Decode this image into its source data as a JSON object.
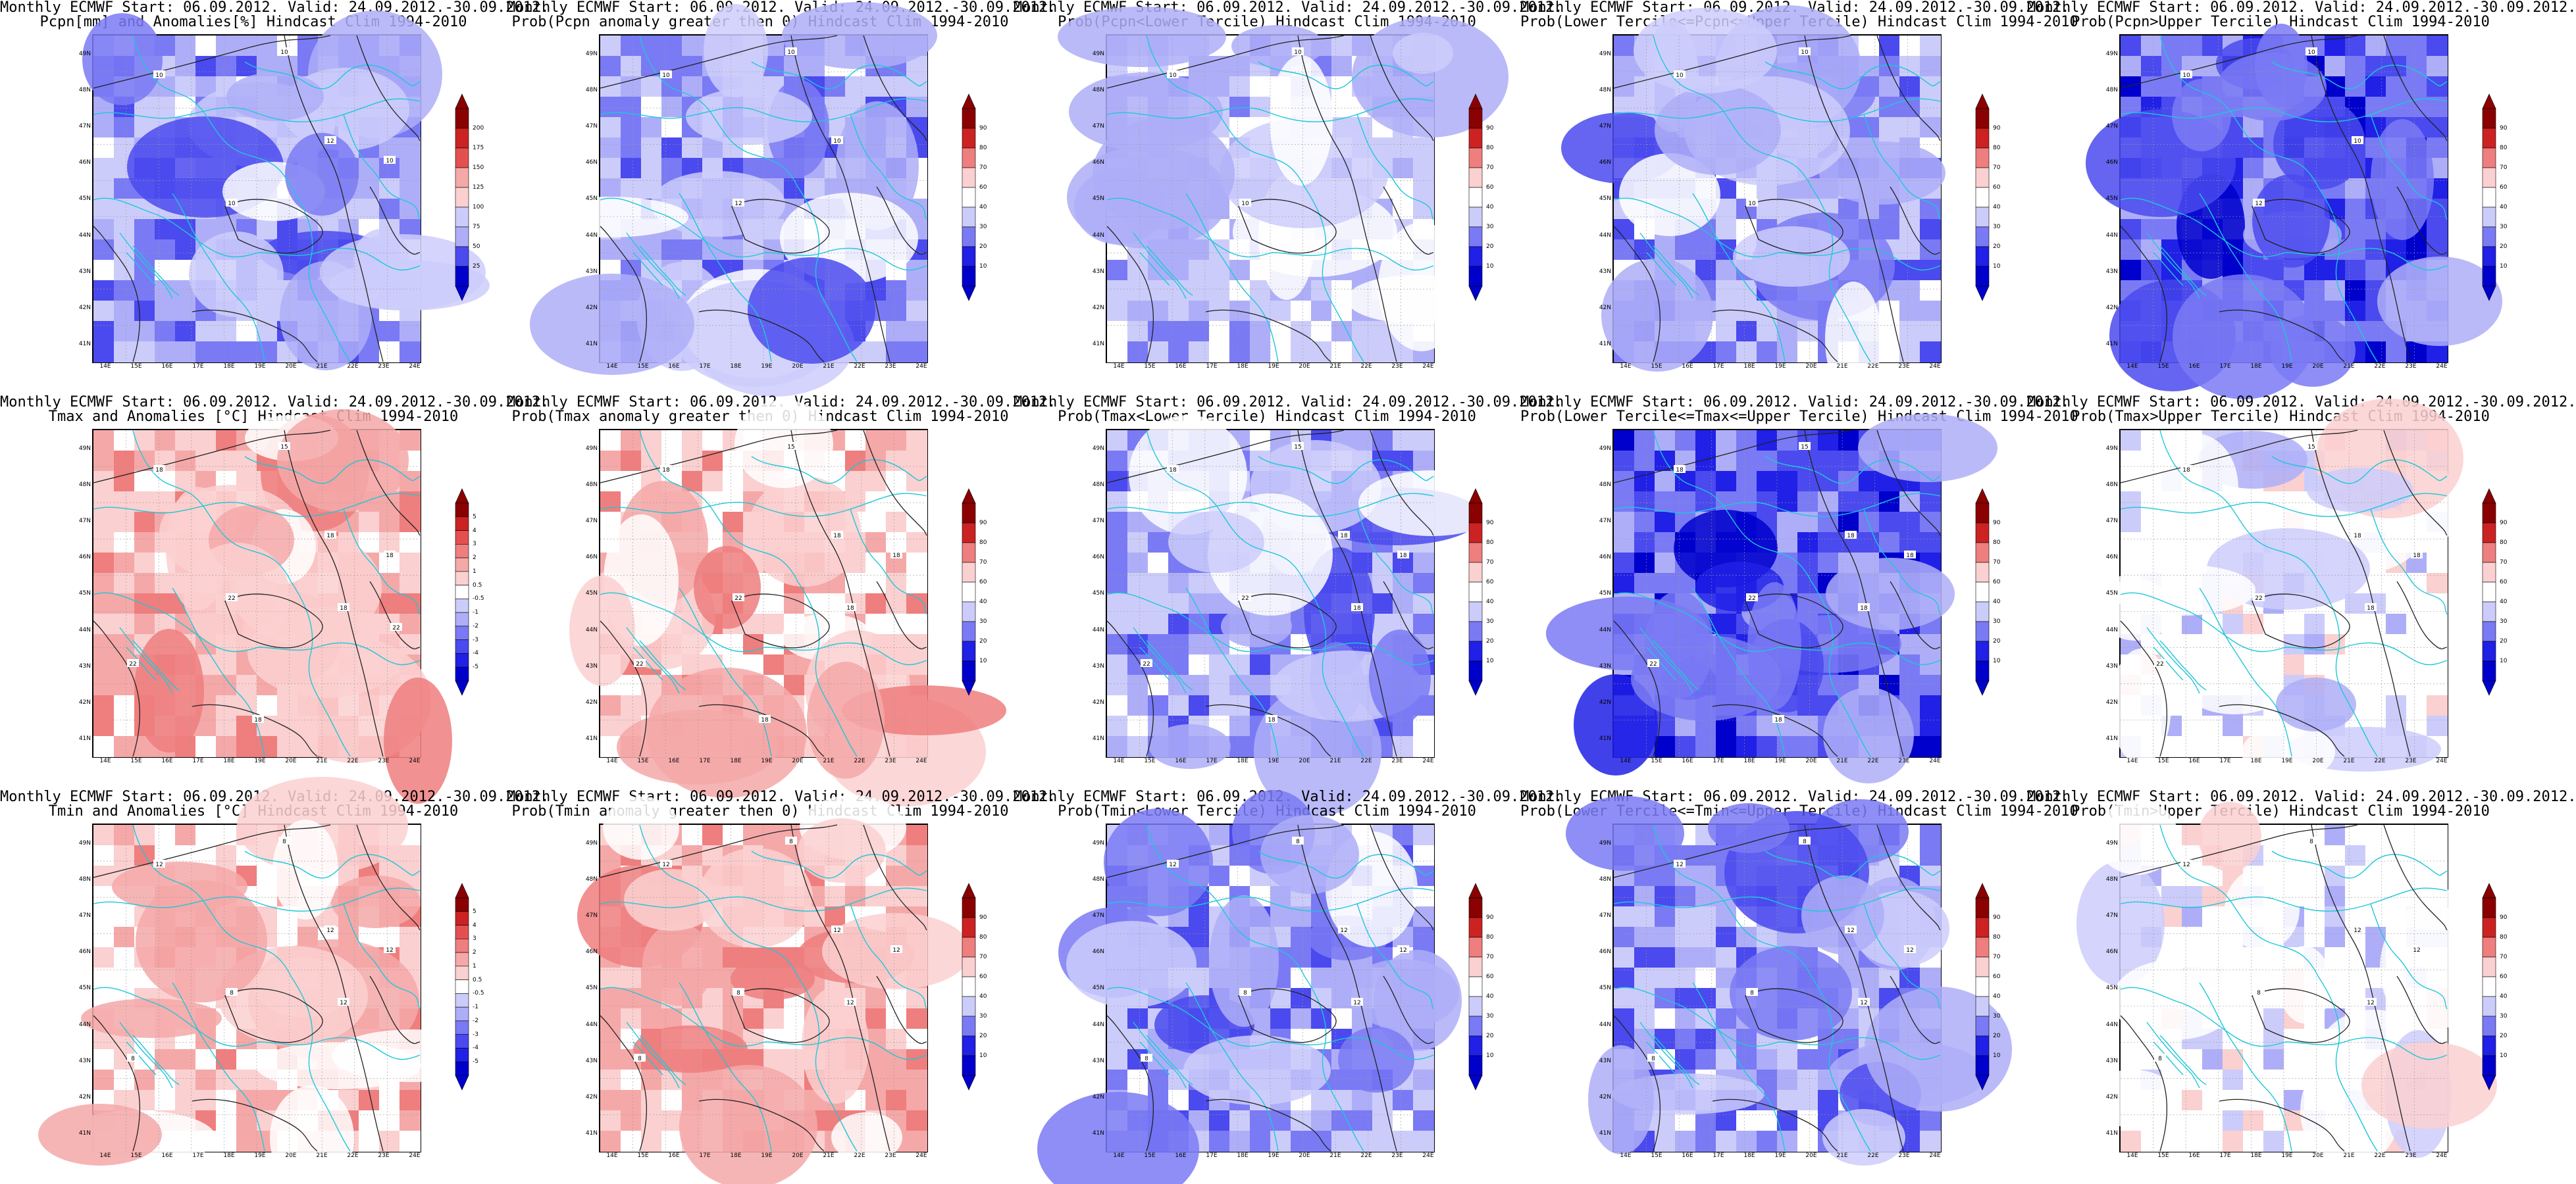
{
  "axes": {
    "lat_labels": [
      "49N",
      "48N",
      "47N",
      "46N",
      "45N",
      "44N",
      "43N",
      "42N",
      "41N"
    ],
    "lon_labels": [
      "14E",
      "15E",
      "16E",
      "17E",
      "18E",
      "19E",
      "20E",
      "21E",
      "22E",
      "23E",
      "24E"
    ]
  },
  "colorbars": {
    "precip": [
      "200",
      "175",
      "150",
      "125",
      "100",
      "75",
      "50",
      "25"
    ],
    "anomaly": [
      "5",
      "4",
      "3",
      "2",
      "1",
      "0.5",
      "-0.5",
      "-1",
      "-2",
      "-3",
      "-4",
      "-5"
    ],
    "probability": [
      "90",
      "80",
      "70",
      "60",
      "40",
      "30",
      "20",
      "10"
    ]
  },
  "palettes": {
    "blues": [
      "#0000cc",
      "#2020e6",
      "#4a4aef",
      "#7a7af5",
      "#aeaef8",
      "#ccccfb",
      "#ffffff"
    ],
    "reds": [
      "#ffffff",
      "#fbd0d0",
      "#f5a8a8",
      "#ef7e7e",
      "#e45050",
      "#cc2222",
      "#8b0000"
    ]
  },
  "panels": [
    {
      "title1": "Monthly ECMWF Start: 06.09.2012. Valid: 24.09.2012.-30.09.2012.",
      "title2": "Pcpn[mm] and Anomalies[%] Hindcast Clim 1994-2010",
      "theme": "blue",
      "cbar": "precip",
      "contours": [
        "10",
        "10",
        "10",
        "12",
        "10"
      ]
    },
    {
      "title1": "Monthly ECMWF Start: 06.09.2012. Valid: 24.09.2012.-30.09.2012.",
      "title2": "Prob(Pcpn anomaly greater then 0) Hindcast Clim 1994-2010",
      "theme": "blue",
      "cbar": "probability",
      "contours": [
        "10",
        "10",
        "12",
        "10"
      ]
    },
    {
      "title1": "Monthly ECMWF Start: 06.09.2012. Valid: 24.09.2012.-30.09.2012.",
      "title2": "Prob(Pcpn<Lower Tercile) Hindcast Clim 1994-2010",
      "theme": "bluelight",
      "cbar": "probability",
      "contours": [
        "10",
        "10",
        "10"
      ]
    },
    {
      "title1": "Monthly ECMWF Start: 06.09.2012. Valid: 24.09.2012.-30.09.2012.",
      "title2": "Prob(Lower Tercile<=Pcpn<=Upper Tercile) Hindcast Clim 1994-2010",
      "theme": "blue",
      "cbar": "probability",
      "contours": [
        "10",
        "10",
        "10"
      ]
    },
    {
      "title1": "Monthly ECMWF Start: 06.09.2012. Valid: 24.09.2012.-30.09.2012.",
      "title2": "Prob(Pcpn>Upper Tercile) Hindcast Clim 1994-2010",
      "theme": "bluedark",
      "cbar": "probability",
      "contours": [
        "10",
        "10",
        "12",
        "10"
      ]
    },
    {
      "title1": "Monthly ECMWF Start: 06.09.2012. Valid: 24.09.2012.-30.09.2012.",
      "title2": "Tmax and Anomalies [°C] Hindcast Clim 1994-2010",
      "theme": "red",
      "cbar": "anomaly",
      "contours": [
        "18",
        "15",
        "22",
        "18",
        "18",
        "22",
        "18",
        "18",
        "22"
      ]
    },
    {
      "title1": "Monthly ECMWF Start: 06.09.2012. Valid: 24.09.2012.-30.09.2012.",
      "title2": "Prob(Tmax anomaly greater then 0) Hindcast Clim 1994-2010",
      "theme": "redlight",
      "cbar": "probability",
      "contours": [
        "18",
        "15",
        "22",
        "18",
        "18",
        "22",
        "18",
        "18"
      ]
    },
    {
      "title1": "Monthly ECMWF Start: 06.09.2012. Valid: 24.09.2012.-30.09.2012.",
      "title2": "Prob(Tmax<Lower Tercile) Hindcast Clim 1994-2010",
      "theme": "blue",
      "cbar": "probability",
      "contours": [
        "18",
        "15",
        "22",
        "18",
        "18",
        "22",
        "18",
        "18"
      ]
    },
    {
      "title1": "Monthly ECMWF Start: 06.09.2012. Valid: 24.09.2012.-30.09.2012.",
      "title2": "Prob(Lower Tercile<=Tmax<=Upper Tercile) Hindcast Clim 1994-2010",
      "theme": "bluedark",
      "cbar": "probability",
      "contours": [
        "18",
        "15",
        "22",
        "18",
        "18",
        "22",
        "18",
        "18"
      ]
    },
    {
      "title1": "Monthly ECMWF Start: 06.09.2012. Valid: 24.09.2012.-30.09.2012.",
      "title2": "Prob(Tmax>Upper Tercile) Hindcast Clim 1994-2010",
      "theme": "whitish",
      "cbar": "probability",
      "contours": [
        "18",
        "15",
        "22",
        "18",
        "18",
        "22",
        "18"
      ]
    },
    {
      "title1": "Monthly ECMWF Start: 06.09.2012. Valid: 24.09.2012.-30.09.2012.",
      "title2": "Tmin and Anomalies [°C] Hindcast Clim 1994-2010",
      "theme": "redlight",
      "cbar": "anomaly",
      "contours": [
        "12",
        "8",
        "8",
        "12",
        "12",
        "8",
        "12"
      ]
    },
    {
      "title1": "Monthly ECMWF Start: 06.09.2012. Valid: 24.09.2012.-30.09.2012.",
      "title2": "Prob(Tmin anomaly greater then 0) Hindcast Clim 1994-2010",
      "theme": "red",
      "cbar": "probability",
      "contours": [
        "12",
        "8",
        "8",
        "12",
        "12",
        "8",
        "12"
      ]
    },
    {
      "title1": "Monthly ECMWF Start: 06.09.2012. Valid: 24.09.2012.-30.09.2012.",
      "title2": "Prob(Tmin<Lower Tercile) Hindcast Clim 1994-2010",
      "theme": "blue",
      "cbar": "probability",
      "contours": [
        "12",
        "8",
        "8",
        "12",
        "12",
        "8",
        "12"
      ]
    },
    {
      "title1": "Monthly ECMWF Start: 06.09.2012. Valid: 24.09.2012.-30.09.2012.",
      "title2": "Prob(Lower Tercile<=Tmin<=Upper Tercile) Hindcast Clim 1994-2010",
      "theme": "blue",
      "cbar": "probability",
      "contours": [
        "12",
        "8",
        "8",
        "12",
        "12",
        "8",
        "12"
      ]
    },
    {
      "title1": "Monthly ECMWF Start: 06.09.2012. Valid: 24.09.2012.-30.09.2012.",
      "title2": "Prob(Tmin>Upper Tercile) Hindcast Clim 1994-2010",
      "theme": "whitish",
      "cbar": "probability",
      "contours": [
        "12",
        "8",
        "8",
        "12",
        "12",
        "8",
        "12"
      ]
    }
  ]
}
